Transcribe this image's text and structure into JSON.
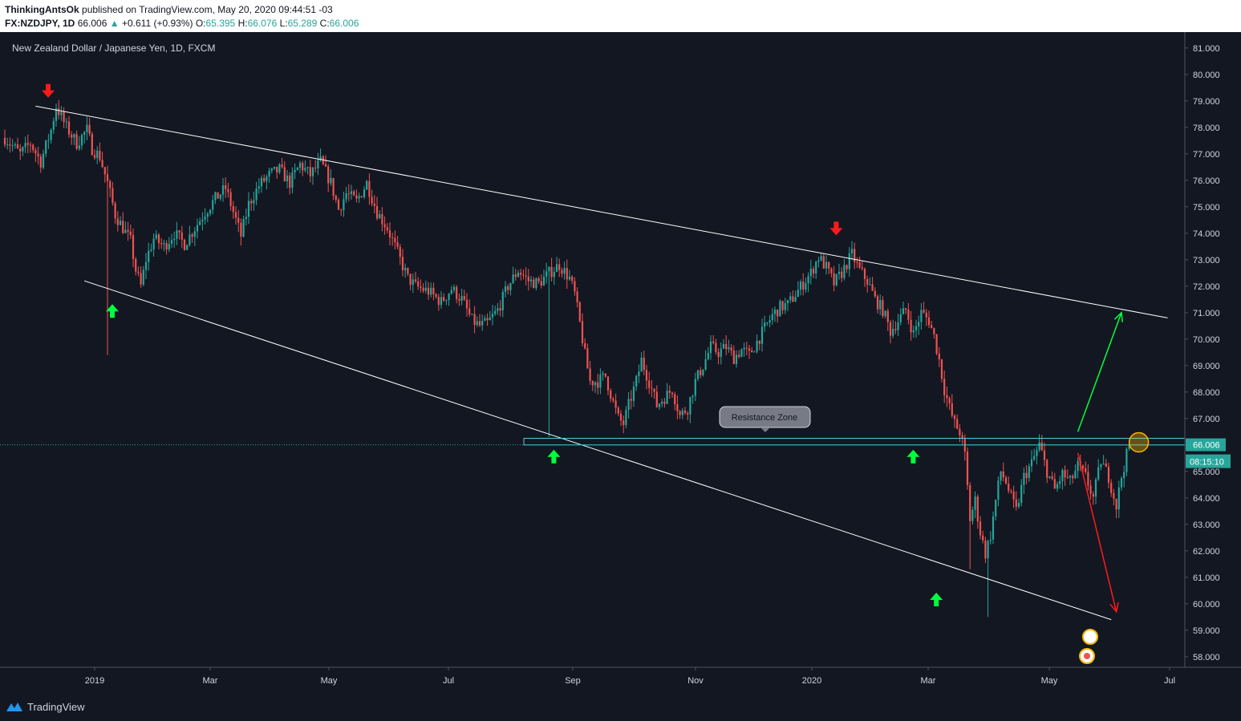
{
  "header": {
    "author": "ThinkingAntsOk",
    "published": "published on TradingView.com, May 20, 2020 09:44:51 -03",
    "symbol": "FX:NZDJPY, 1D",
    "last": "66.006",
    "change": "+0.611 (+0.93%)",
    "o_label": "O:",
    "o": "65.395",
    "h_label": "H:",
    "h": "66.076",
    "l_label": "L:",
    "l": "65.289",
    "c_label": "C:",
    "c": "66.006"
  },
  "footer": {
    "brand": "TradingView"
  },
  "chart_data": {
    "type": "candlestick",
    "title": "New Zealand Dollar / Japanese Yen, 1D, FXCM",
    "y_ticks": [
      "81.000",
      "80.000",
      "79.000",
      "78.000",
      "77.000",
      "76.000",
      "75.000",
      "74.000",
      "73.000",
      "72.000",
      "71.000",
      "70.000",
      "69.000",
      "68.000",
      "67.000",
      "66.000",
      "65.000",
      "64.000",
      "63.000",
      "62.000",
      "61.000",
      "60.000",
      "59.000",
      "58.000"
    ],
    "ylim": [
      57.6,
      81.6
    ],
    "x_ticks": [
      "2019",
      "Mar",
      "May",
      "Jul",
      "Sep",
      "Nov",
      "2020",
      "Mar",
      "May",
      "Jul"
    ],
    "price_label": "66.006",
    "countdown_label": "08:15:10",
    "resistance_label": "Resistance Zone",
    "resistance_zone": [
      66.0,
      66.25
    ],
    "colors": {
      "up": "#26a69a",
      "down": "#ef5350",
      "line": "#ffffff",
      "zone": "#4dd0e1",
      "arrow_up": "#00ff3c",
      "arrow_down": "#ff1a1a"
    },
    "path": [
      [
        0,
        77.6
      ],
      [
        6,
        77.0
      ],
      [
        10,
        77.4
      ],
      [
        14,
        76.7
      ],
      [
        18,
        77.9
      ],
      [
        20,
        78.8
      ],
      [
        24,
        78.0
      ],
      [
        28,
        77.4
      ],
      [
        32,
        77.9
      ],
      [
        34,
        77.2
      ],
      [
        37,
        76.9
      ],
      [
        40,
        75.9
      ],
      [
        43,
        74.7
      ],
      [
        46,
        74.2
      ],
      [
        49,
        73.7
      ],
      [
        51,
        72.6
      ],
      [
        53,
        72.0
      ],
      [
        55,
        73.0
      ],
      [
        58,
        73.8
      ],
      [
        62,
        73.5
      ],
      [
        66,
        74.0
      ],
      [
        70,
        73.6
      ],
      [
        74,
        74.2
      ],
      [
        78,
        74.8
      ],
      [
        82,
        75.3
      ],
      [
        86,
        75.7
      ],
      [
        90,
        74.5
      ],
      [
        92,
        73.9
      ],
      [
        95,
        75.1
      ],
      [
        99,
        75.8
      ],
      [
        103,
        76.2
      ],
      [
        107,
        76.4
      ],
      [
        111,
        75.9
      ],
      [
        115,
        76.6
      ],
      [
        119,
        76.2
      ],
      [
        123,
        76.7
      ],
      [
        127,
        75.9
      ],
      [
        130,
        74.9
      ],
      [
        133,
        75.5
      ],
      [
        137,
        75.2
      ],
      [
        141,
        75.9
      ],
      [
        145,
        74.8
      ],
      [
        149,
        74.2
      ],
      [
        152,
        73.5
      ],
      [
        154,
        73.0
      ],
      [
        157,
        72.3
      ],
      [
        160,
        72.0
      ],
      [
        165,
        71.8
      ],
      [
        170,
        71.4
      ],
      [
        174,
        71.9
      ],
      [
        178,
        71.5
      ],
      [
        182,
        70.7
      ],
      [
        185,
        70.5
      ],
      [
        188,
        70.6
      ],
      [
        192,
        71.1
      ],
      [
        196,
        72.0
      ],
      [
        200,
        72.6
      ],
      [
        204,
        72.2
      ],
      [
        208,
        72.1
      ],
      [
        212,
        72.5
      ],
      [
        216,
        72.8
      ],
      [
        220,
        72.3
      ],
      [
        222,
        71.7
      ],
      [
        224,
        70.6
      ],
      [
        226,
        69.4
      ],
      [
        228,
        68.4
      ],
      [
        231,
        68.4
      ],
      [
        234,
        68.6
      ],
      [
        237,
        67.6
      ],
      [
        239,
        67.0
      ],
      [
        241,
        66.8
      ],
      [
        243,
        67.5
      ],
      [
        246,
        68.4
      ],
      [
        248,
        69.2
      ],
      [
        251,
        68.4
      ],
      [
        254,
        67.5
      ],
      [
        257,
        67.8
      ],
      [
        260,
        68.1
      ],
      [
        263,
        67.1
      ],
      [
        266,
        67.4
      ],
      [
        269,
        68.4
      ],
      [
        272,
        69.0
      ],
      [
        275,
        69.7
      ],
      [
        278,
        69.5
      ],
      [
        281,
        69.7
      ],
      [
        284,
        69.3
      ],
      [
        287,
        69.6
      ],
      [
        290,
        69.4
      ],
      [
        293,
        69.9
      ],
      [
        296,
        70.4
      ],
      [
        299,
        70.9
      ],
      [
        302,
        71.2
      ],
      [
        305,
        71.3
      ],
      [
        308,
        71.7
      ],
      [
        311,
        72.1
      ],
      [
        314,
        72.5
      ],
      [
        317,
        73.1
      ],
      [
        320,
        72.7
      ],
      [
        323,
        72.1
      ],
      [
        326,
        72.5
      ],
      [
        330,
        73.2
      ],
      [
        333,
        72.6
      ],
      [
        336,
        72.2
      ],
      [
        339,
        71.5
      ],
      [
        342,
        71.1
      ],
      [
        345,
        70.3
      ],
      [
        348,
        70.7
      ],
      [
        351,
        71.1
      ],
      [
        354,
        70.2
      ],
      [
        357,
        71.0
      ],
      [
        360,
        70.7
      ],
      [
        362,
        70.1
      ],
      [
        364,
        69.2
      ],
      [
        366,
        68.1
      ],
      [
        368,
        67.4
      ],
      [
        370,
        66.8
      ],
      [
        372,
        66.5
      ],
      [
        374,
        65.6
      ],
      [
        376,
        63.2
      ],
      [
        378,
        63.9
      ],
      [
        380,
        62.7
      ],
      [
        382,
        61.9
      ],
      [
        384,
        62.6
      ],
      [
        386,
        63.9
      ],
      [
        388,
        65.0
      ],
      [
        390,
        64.6
      ],
      [
        392,
        64.0
      ],
      [
        394,
        63.5
      ],
      [
        397,
        64.8
      ],
      [
        400,
        65.3
      ],
      [
        403,
        66.0
      ],
      [
        406,
        65.0
      ],
      [
        409,
        64.3
      ],
      [
        412,
        64.9
      ],
      [
        415,
        64.6
      ],
      [
        418,
        65.2
      ],
      [
        421,
        64.8
      ],
      [
        424,
        64.0
      ],
      [
        427,
        65.4
      ],
      [
        430,
        64.8
      ],
      [
        433,
        63.7
      ],
      [
        435,
        64.8
      ],
      [
        438,
        66.0
      ]
    ],
    "trendlines": [
      {
        "name": "upper",
        "from": [
          12,
          78.8
        ],
        "to": [
          453,
          70.8
        ]
      },
      {
        "name": "lower",
        "from": [
          31,
          72.2
        ],
        "to": [
          431,
          59.4
        ]
      }
    ],
    "projections": [
      {
        "name": "bullish",
        "from": [
          418,
          66.5
        ],
        "to": [
          435,
          71.0
        ]
      },
      {
        "name": "bearish",
        "from": [
          418,
          65.7
        ],
        "to": [
          433,
          59.7
        ]
      }
    ],
    "markers_down": [
      [
        15,
        79.0
      ],
      [
        322,
        73.8
      ]
    ],
    "markers_up": [
      [
        40,
        71.5
      ],
      [
        212,
        66.0
      ],
      [
        352,
        66.0
      ],
      [
        361,
        60.6
      ]
    ]
  }
}
